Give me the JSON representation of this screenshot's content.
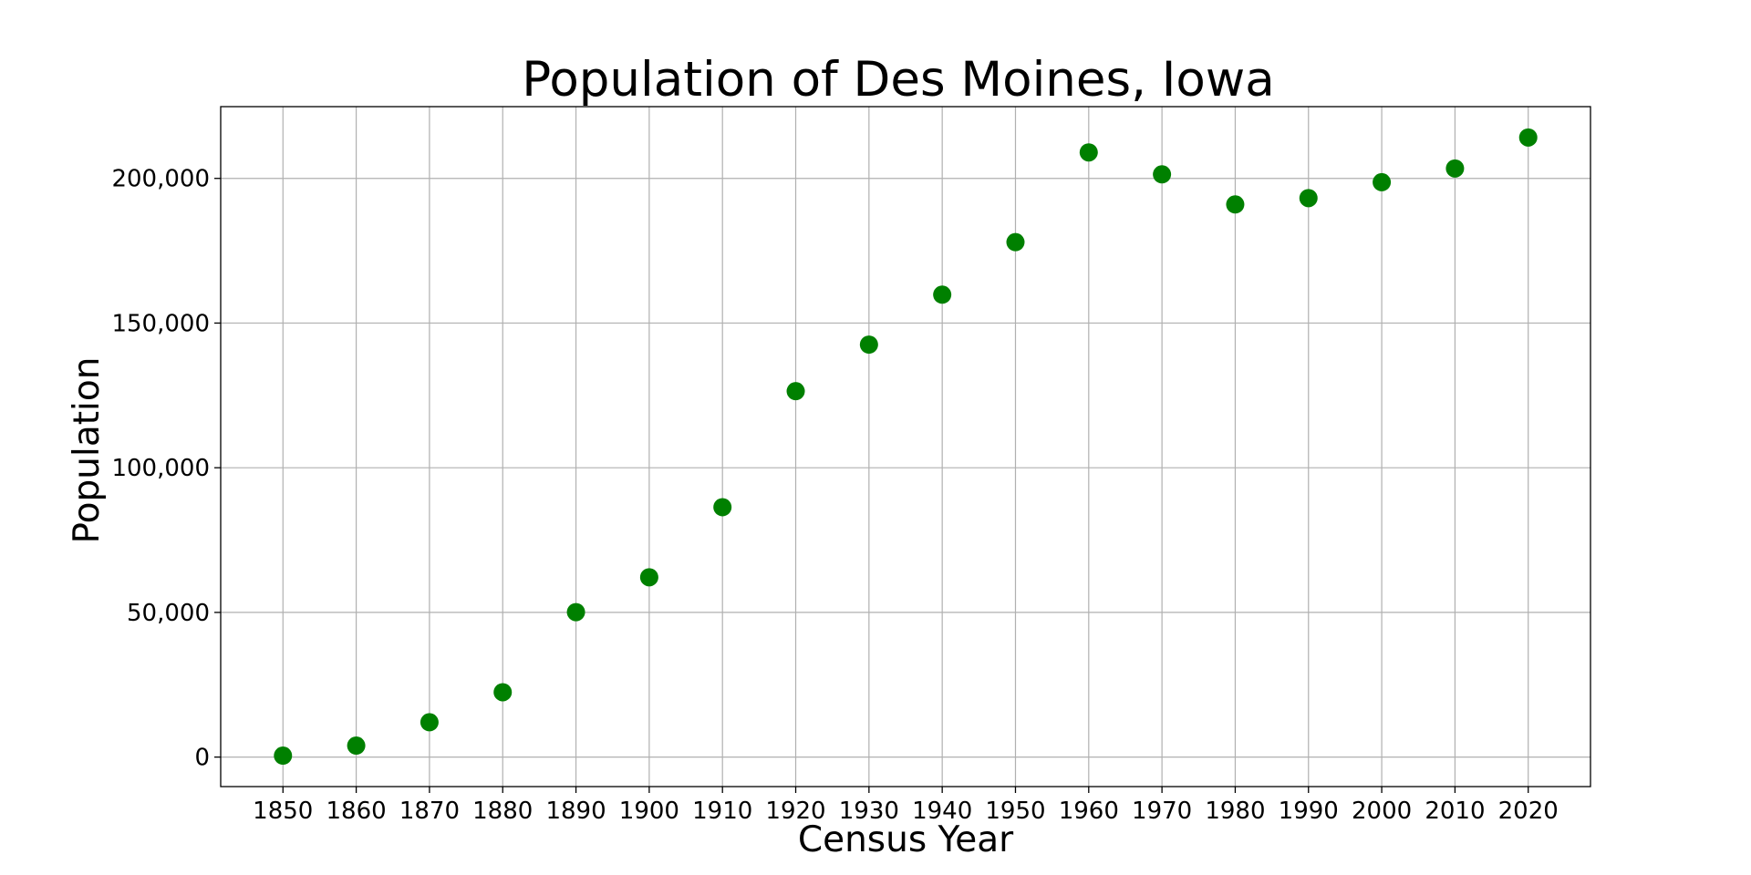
{
  "chart_data": {
    "type": "scatter",
    "title": "Population of Des Moines, Iowa",
    "xlabel": "Census Year",
    "ylabel": "Population",
    "x": [
      1850,
      1860,
      1870,
      1880,
      1890,
      1900,
      1910,
      1920,
      1930,
      1940,
      1950,
      1960,
      1970,
      1980,
      1990,
      2000,
      2010,
      2020
    ],
    "y": [
      500,
      3965,
      12035,
      22408,
      50093,
      62139,
      86368,
      126468,
      142559,
      159819,
      177965,
      208982,
      201404,
      191003,
      193187,
      198682,
      203433,
      214133
    ],
    "xticks": [
      "1850",
      "1860",
      "1870",
      "1880",
      "1890",
      "1900",
      "1910",
      "1920",
      "1930",
      "1940",
      "1950",
      "1960",
      "1970",
      "1980",
      "1990",
      "2000",
      "2010",
      "2020"
    ],
    "yticks": [
      0,
      50000,
      100000,
      150000,
      200000
    ],
    "ytick_labels": [
      "0",
      "50,000",
      "100,000",
      "150,000",
      "200,000"
    ],
    "xlim": [
      1841.5,
      2028.5
    ],
    "ylim": [
      -10200,
      224800
    ],
    "grid": true,
    "marker_color": "#008000"
  }
}
